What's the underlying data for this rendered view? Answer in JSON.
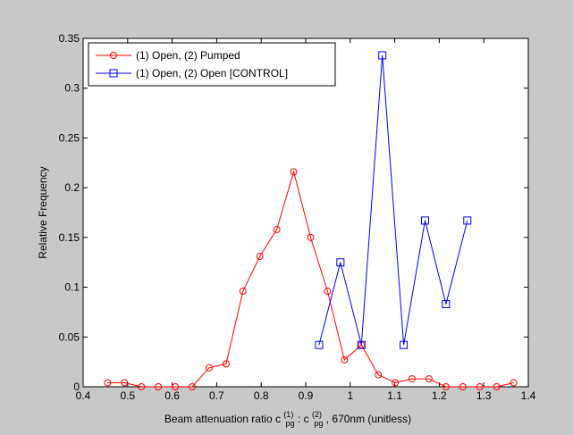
{
  "chart_data": {
    "type": "line",
    "xlabel": "Beam attenuation ratio c",
    "xlabel_parts": {
      "prefix": "Beam attenuation ratio c",
      "sub1": "pg",
      "sup1": "(1)",
      "sep": " : c",
      "sub2": "pg",
      "sup2": "(2)",
      "suffix": ", 670nm (unitless)"
    },
    "ylabel": "Relative Frequency",
    "xlim": [
      0.4,
      1.4
    ],
    "ylim": [
      0,
      0.35
    ],
    "x_ticks": [
      "0.4",
      "0.5",
      "0.6",
      "0.7",
      "0.8",
      "0.9",
      "1",
      "1.1",
      "1.2",
      "1.3",
      "1.4"
    ],
    "y_ticks": [
      "0",
      "0.05",
      "0.1",
      "0.15",
      "0.2",
      "0.25",
      "0.3",
      "0.35"
    ],
    "grid": false,
    "legend_position": "top-left",
    "series": [
      {
        "name": "(1) Open, (2) Pumped",
        "color": "#ff0000",
        "marker": "circle",
        "x": [
          0.455,
          0.493,
          0.531,
          0.569,
          0.607,
          0.645,
          0.683,
          0.721,
          0.759,
          0.797,
          0.835,
          0.873,
          0.911,
          0.949,
          0.987,
          1.025,
          1.063,
          1.101,
          1.139,
          1.177,
          1.215,
          1.253,
          1.291,
          1.329,
          1.367
        ],
        "y": [
          0.004,
          0.004,
          0.0,
          0.0,
          0.0,
          0.0,
          0.019,
          0.023,
          0.096,
          0.131,
          0.158,
          0.216,
          0.15,
          0.096,
          0.027,
          0.042,
          0.012,
          0.004,
          0.008,
          0.008,
          0.0,
          0.0,
          0.0,
          0.0,
          0.004
        ]
      },
      {
        "name": "(1) Open, (2) Open [CONTROL]",
        "color": "#0000ff",
        "marker": "square",
        "x": [
          0.93,
          0.978,
          1.025,
          1.072,
          1.12,
          1.168,
          1.215,
          1.263
        ],
        "y": [
          0.042,
          0.125,
          0.042,
          0.333,
          0.042,
          0.167,
          0.083,
          0.167
        ]
      }
    ]
  }
}
